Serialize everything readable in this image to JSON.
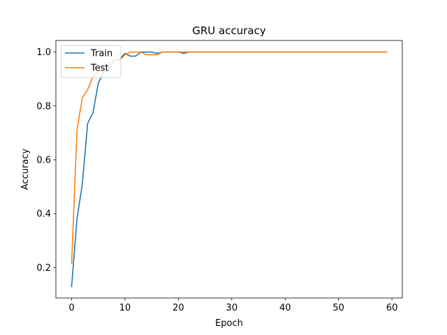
{
  "chart_data": {
    "type": "line",
    "title": "GRU accuracy",
    "xlabel": "Epoch",
    "ylabel": "Accuracy",
    "xlim": [
      -2.95,
      61.95
    ],
    "ylim": [
      0.087,
      1.043
    ],
    "x_ticks": [
      0,
      10,
      20,
      30,
      40,
      50,
      60
    ],
    "y_ticks": [
      0.2,
      0.4,
      0.6,
      0.8,
      1.0
    ],
    "legend_position": "top-left",
    "grid": false,
    "series": [
      {
        "name": "Train",
        "color": "#1f77b4",
        "x": [
          0,
          1,
          2,
          3,
          4,
          5,
          6,
          7,
          8,
          9,
          10,
          11,
          12,
          13,
          14,
          15,
          16,
          17,
          18,
          19,
          20,
          21,
          22,
          23,
          24,
          25,
          26,
          27,
          28,
          29,
          30,
          31,
          32,
          33,
          34,
          35,
          36,
          37,
          38,
          39,
          40,
          41,
          42,
          43,
          44,
          45,
          46,
          47,
          48,
          49,
          50,
          51,
          52,
          53,
          54,
          55,
          56,
          57,
          58,
          59
        ],
        "values": [
          0.13,
          0.38,
          0.51,
          0.735,
          0.775,
          0.885,
          0.925,
          0.935,
          0.97,
          0.975,
          0.995,
          0.985,
          0.985,
          1.0,
          1.0,
          1.0,
          0.995,
          1.0,
          1.0,
          1.0,
          1.0,
          0.995,
          1.0,
          1.0,
          1.0,
          1.0,
          1.0,
          1.0,
          1.0,
          1.0,
          1.0,
          1.0,
          1.0,
          1.0,
          1.0,
          1.0,
          1.0,
          1.0,
          1.0,
          1.0,
          1.0,
          1.0,
          1.0,
          1.0,
          1.0,
          1.0,
          1.0,
          1.0,
          1.0,
          1.0,
          1.0,
          1.0,
          1.0,
          1.0,
          1.0,
          1.0,
          1.0,
          1.0,
          1.0,
          1.0
        ]
      },
      {
        "name": "Test",
        "color": "#ff7f0e",
        "x": [
          0,
          1,
          2,
          3,
          4,
          5,
          6,
          7,
          8,
          9,
          10,
          11,
          12,
          13,
          14,
          15,
          16,
          17,
          18,
          19,
          20,
          21,
          22,
          23,
          24,
          25,
          26,
          27,
          28,
          29,
          30,
          31,
          32,
          33,
          34,
          35,
          36,
          37,
          38,
          39,
          40,
          41,
          42,
          43,
          44,
          45,
          46,
          47,
          48,
          49,
          50,
          51,
          52,
          53,
          54,
          55,
          56,
          57,
          58,
          59
        ],
        "values": [
          0.215,
          0.71,
          0.83,
          0.86,
          0.91,
          0.925,
          0.945,
          0.96,
          0.97,
          0.97,
          0.99,
          1.0,
          1.0,
          1.0,
          0.99,
          0.99,
          0.99,
          1.0,
          1.0,
          1.0,
          1.0,
          1.0,
          1.0,
          1.0,
          1.0,
          1.0,
          1.0,
          1.0,
          1.0,
          1.0,
          1.0,
          1.0,
          1.0,
          1.0,
          1.0,
          1.0,
          1.0,
          1.0,
          1.0,
          1.0,
          1.0,
          1.0,
          1.0,
          1.0,
          1.0,
          1.0,
          1.0,
          1.0,
          1.0,
          1.0,
          1.0,
          1.0,
          1.0,
          1.0,
          1.0,
          1.0,
          1.0,
          1.0,
          1.0,
          1.0
        ]
      }
    ]
  }
}
